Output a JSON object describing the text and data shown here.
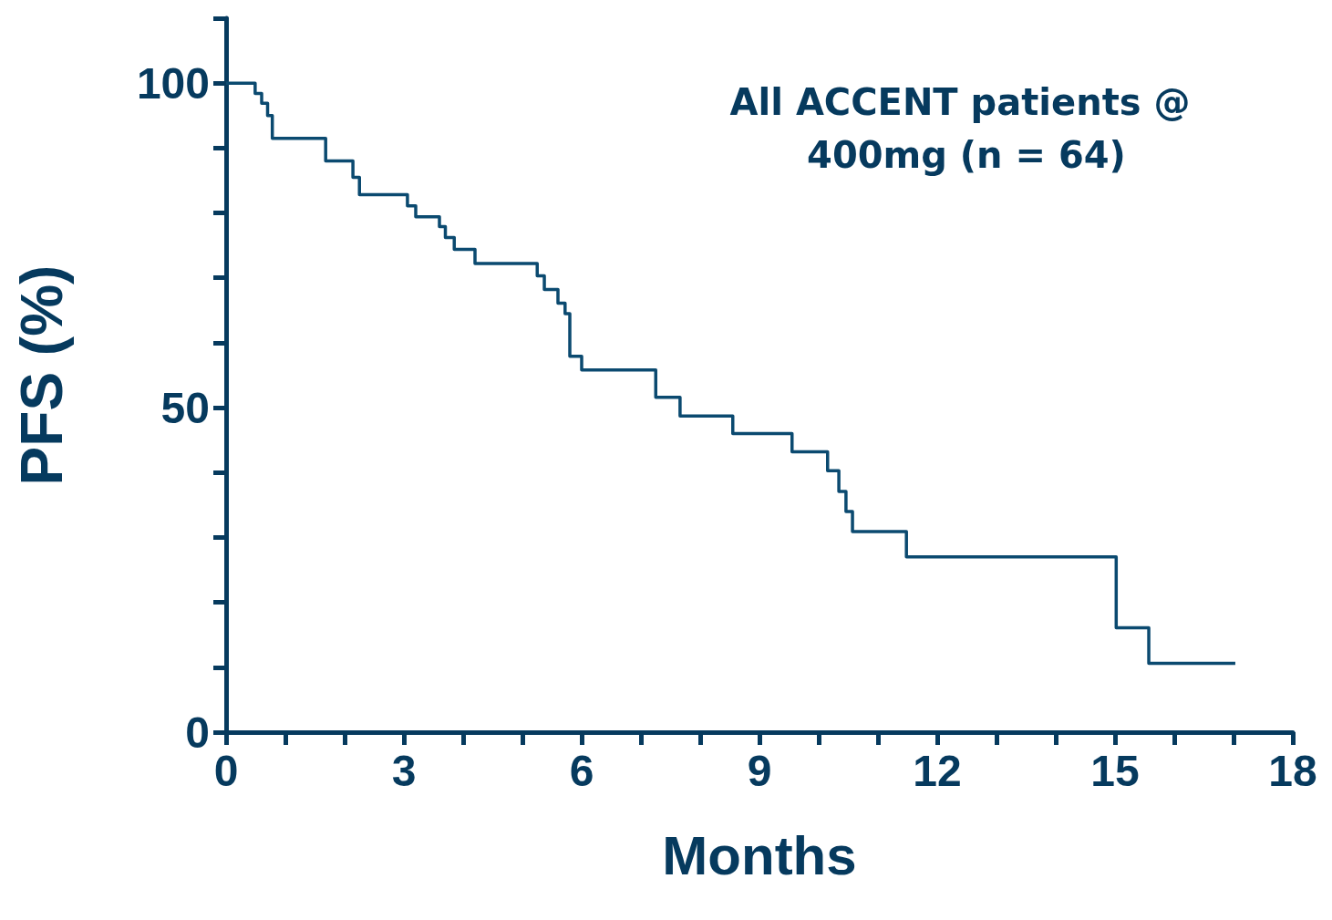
{
  "chart_data": {
    "type": "step",
    "title": "All ACCENT patients @ 400mg (n = 64)",
    "xlabel": "Months",
    "ylabel": "PFS (%)",
    "series": [
      {
        "color": "#0b4a70",
        "x": [
          0,
          0.49,
          0.6,
          0.7,
          0.78,
          1.68,
          2.14,
          2.25,
          3.06,
          3.2,
          3.6,
          3.7,
          3.85,
          4.2,
          5.25,
          5.37,
          5.6,
          5.72,
          5.8,
          6.0,
          7.25,
          7.66,
          8.55,
          9.55,
          10.15,
          10.34,
          10.46,
          10.57,
          11.48,
          15.02,
          15.57,
          17.03
        ],
        "values": [
          100,
          98.4,
          96.9,
          95.0,
          91.5,
          88.0,
          85.5,
          82.8,
          81.1,
          79.4,
          77.9,
          76.2,
          74.4,
          72.2,
          70.3,
          68.2,
          66.1,
          64.5,
          57.9,
          55.8,
          51.6,
          48.7,
          46.0,
          43.2,
          40.3,
          37.1,
          34.0,
          30.9,
          27.0,
          16.1,
          10.6,
          10.6
        ]
      }
    ],
    "xlim": [
      0,
      18
    ],
    "xticks": [
      0,
      {
        "value": 1,
        "label": null
      },
      {
        "value": 2,
        "label": null
      },
      3,
      {
        "value": 4,
        "label": null
      },
      {
        "value": 5,
        "label": null
      },
      6,
      {
        "value": 7,
        "label": null
      },
      {
        "value": 8,
        "label": null
      },
      9,
      {
        "value": 10,
        "label": null
      },
      {
        "value": 11,
        "label": null
      },
      12,
      {
        "value": 13,
        "label": null
      },
      {
        "value": 14,
        "label": null
      },
      15,
      {
        "value": 16,
        "label": null
      },
      {
        "value": 17,
        "label": null
      },
      18
    ],
    "ylim": [
      0,
      110
    ],
    "yticks": [
      0,
      {
        "value": 10,
        "label": null
      },
      {
        "value": 20,
        "label": null
      },
      {
        "value": 30,
        "label": null
      },
      {
        "value": 40,
        "label": null
      },
      50,
      {
        "value": 60,
        "label": null
      },
      {
        "value": 70,
        "label": null
      },
      {
        "value": 80,
        "label": null
      },
      {
        "value": 90,
        "label": null
      },
      100,
      {
        "value": 110,
        "label": null
      }
    ],
    "grid": false,
    "marker": "none",
    "line_style": "solid"
  }
}
